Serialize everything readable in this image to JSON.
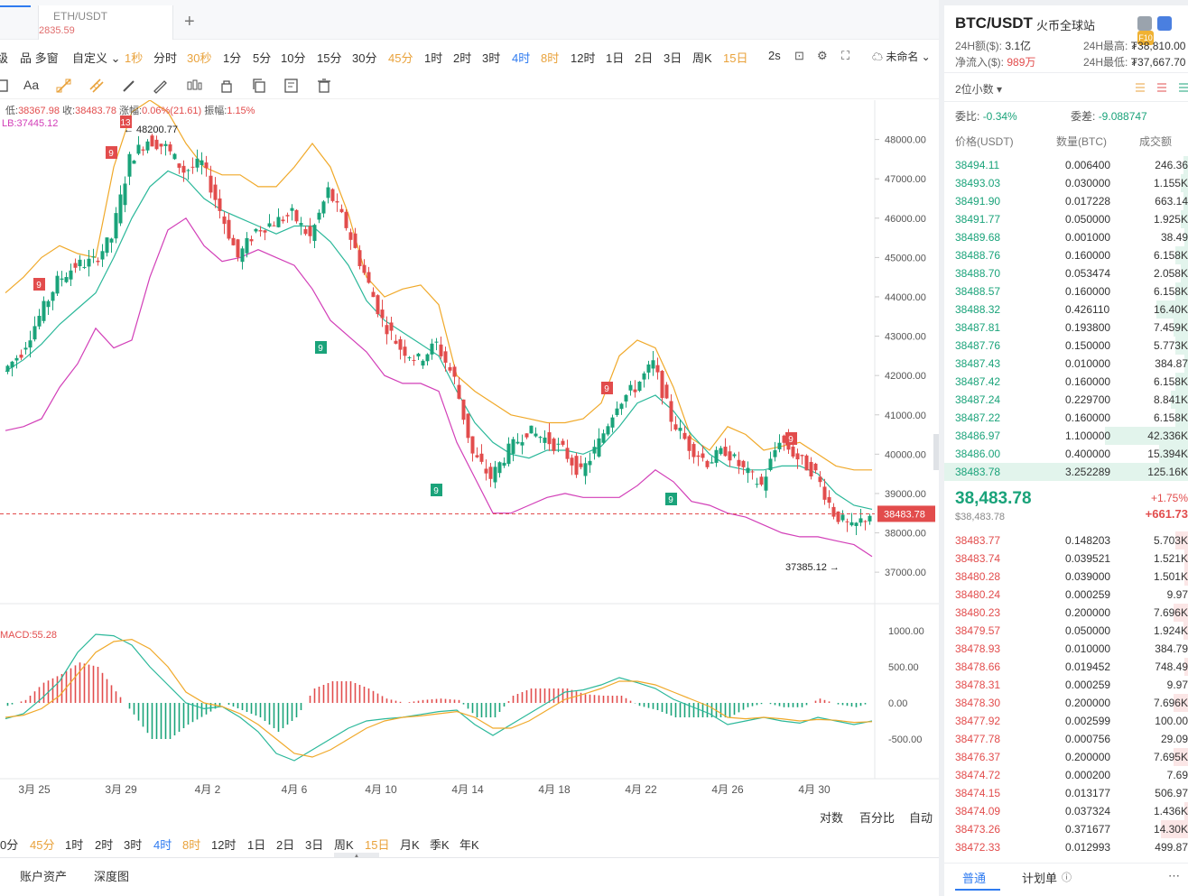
{
  "tabs": {
    "eth_label": "ETH/USDT",
    "eth_price": "2835.59",
    "add": "+"
  },
  "toolbar": {
    "items": [
      {
        "label": "级",
        "cls": ""
      },
      {
        "label": "品 多窗",
        "cls": ""
      },
      {
        "label": "自定义 ⌄",
        "cls": ""
      },
      {
        "label": "1秒",
        "cls": "orange"
      },
      {
        "label": "分时",
        "cls": ""
      },
      {
        "label": "30秒",
        "cls": "orange"
      },
      {
        "label": "1分",
        "cls": ""
      },
      {
        "label": "5分",
        "cls": ""
      },
      {
        "label": "10分",
        "cls": ""
      },
      {
        "label": "15分",
        "cls": ""
      },
      {
        "label": "30分",
        "cls": ""
      },
      {
        "label": "45分",
        "cls": "orange"
      },
      {
        "label": "1时",
        "cls": ""
      },
      {
        "label": "2时",
        "cls": ""
      },
      {
        "label": "3时",
        "cls": ""
      },
      {
        "label": "4时",
        "cls": "blue"
      },
      {
        "label": "8时",
        "cls": "orange"
      },
      {
        "label": "12时",
        "cls": ""
      },
      {
        "label": "1日",
        "cls": ""
      },
      {
        "label": "2日",
        "cls": ""
      },
      {
        "label": "3日",
        "cls": ""
      },
      {
        "label": "周K",
        "cls": ""
      },
      {
        "label": "15日",
        "cls": "orange"
      },
      {
        "label": "2s",
        "cls": ""
      }
    ],
    "unnamed": "未命名 ⌄"
  },
  "chart_info": {
    "low_label": "低:",
    "low": "38367.98",
    "close_label": "收:",
    "close": "38483.78",
    "change_label": "涨幅:",
    "change": "0.06%(21.61)",
    "amp_label": "振幅:",
    "amp": "1.15%",
    "boll": "LB:37445.12",
    "macd": "MACD:55.28",
    "high_marker": "← 48200.77",
    "low_marker": "37385.12 →",
    "current_price_tag": "38483.78"
  },
  "chart_data": {
    "type": "candlestick",
    "x_tick_labels": [
      "3月 25",
      "3月 29",
      "4月 2",
      "4月 6",
      "4月 10",
      "4月 14",
      "4月 18",
      "4月 22",
      "4月 26",
      "4月 30"
    ],
    "price_axis": [
      48000,
      47000,
      46000,
      45000,
      44000,
      43000,
      42000,
      41000,
      40000,
      39000,
      38000,
      37000
    ],
    "price_axis_labels": [
      "48000.00",
      "47000.00",
      "46000.00",
      "45000.00",
      "44000.00",
      "43000.00",
      "42000.00",
      "41000.00",
      "40000.00",
      "39000.00",
      "38000.00",
      "37000.00"
    ],
    "ylim": [
      36200,
      49000
    ],
    "macd_axis": [
      1000,
      500,
      0,
      -500
    ],
    "macd_axis_labels": [
      "1000.00",
      "500.00",
      "0.00",
      "-500.00"
    ],
    "macd_ylim": [
      -1050,
      1350
    ],
    "close_series": [
      42100,
      42600,
      43500,
      44400,
      44800,
      44900,
      45500,
      47500,
      48000,
      47800,
      47200,
      47400,
      46200,
      45000,
      45700,
      45900,
      46100,
      45500,
      46700,
      45800,
      44600,
      43400,
      42700,
      42400,
      42800,
      41900,
      40000,
      39400,
      40100,
      40600,
      40400,
      40100,
      39500,
      40300,
      41300,
      41700,
      42300,
      40900,
      40200,
      39800,
      40100,
      39600,
      39200,
      40400,
      39900,
      39500,
      38500,
      38100,
      38483.78
    ],
    "upper_band": [
      44100,
      44500,
      45000,
      45300,
      45100,
      45000,
      47300,
      48700,
      49000,
      48700,
      47900,
      47300,
      47100,
      47100,
      46800,
      46800,
      47300,
      47900,
      47300,
      46100,
      44500,
      44000,
      44200,
      44300,
      43800,
      42000,
      41600,
      41300,
      41000,
      40900,
      40800,
      40800,
      40900,
      41300,
      42500,
      42900,
      42700,
      41700,
      40400,
      40100,
      40700,
      40500,
      40100,
      40200,
      40300,
      40000,
      39700,
      39600,
      39600
    ],
    "middle_band": [
      42100,
      42400,
      42800,
      43300,
      43700,
      44100,
      45000,
      46000,
      46800,
      47200,
      47000,
      46500,
      46200,
      46000,
      45800,
      45600,
      45800,
      45800,
      45400,
      44800,
      43900,
      43400,
      43100,
      42800,
      42500,
      41600,
      40800,
      40300,
      40000,
      39900,
      40100,
      40100,
      40000,
      40200,
      40700,
      41300,
      41500,
      41100,
      40500,
      40000,
      39700,
      39600,
      39600,
      39700,
      39700,
      39500,
      39000,
      38700,
      38600
    ],
    "lower_band": [
      40600,
      40700,
      40900,
      41700,
      42300,
      43200,
      42700,
      42900,
      44500,
      45700,
      46000,
      45300,
      44900,
      45000,
      45200,
      45000,
      44800,
      44200,
      43400,
      43000,
      42600,
      42000,
      41800,
      41800,
      41600,
      40300,
      39400,
      38500,
      38500,
      38700,
      38900,
      39000,
      38900,
      38900,
      38900,
      39200,
      39600,
      39300,
      38800,
      38700,
      38500,
      38400,
      38200,
      38000,
      37900,
      37900,
      37800,
      37700,
      37400
    ],
    "macd_dif": [
      -220,
      -150,
      60,
      300,
      700,
      950,
      930,
      800,
      500,
      250,
      0,
      -80,
      -50,
      -200,
      -400,
      -700,
      -800,
      -650,
      -500,
      -350,
      -250,
      -220,
      -200,
      -160,
      -120,
      -100,
      -300,
      -450,
      -300,
      -150,
      0,
      150,
      180,
      250,
      350,
      280,
      200,
      50,
      -50,
      -150,
      -300,
      -250,
      -200,
      -250,
      -280,
      -200,
      -250,
      -300,
      -250
    ],
    "macd_dea": [
      -200,
      -170,
      -80,
      100,
      400,
      700,
      850,
      880,
      750,
      500,
      150,
      0,
      -50,
      -150,
      -300,
      -500,
      -700,
      -750,
      -650,
      -500,
      -350,
      -250,
      -200,
      -180,
      -150,
      -120,
      -200,
      -350,
      -350,
      -250,
      -100,
      50,
      120,
      200,
      300,
      300,
      250,
      150,
      50,
      -50,
      -200,
      -220,
      -200,
      -220,
      -250,
      -230,
      -240,
      -270,
      -260
    ],
    "macd_hist": [
      -40,
      40,
      280,
      400,
      560,
      500,
      160,
      -160,
      -500,
      -500,
      -300,
      -160,
      0,
      -100,
      -200,
      -400,
      -200,
      200,
      300,
      300,
      200,
      60,
      0,
      40,
      60,
      40,
      -200,
      -200,
      100,
      200,
      200,
      200,
      120,
      100,
      100,
      -40,
      -100,
      -200,
      -200,
      -200,
      -200,
      -60,
      0,
      -60,
      -60,
      60,
      -20,
      -60,
      20
    ]
  },
  "chart_controls": {
    "log": "对数",
    "percent": "百分比",
    "auto": "自动"
  },
  "bottom_periods": [
    {
      "label": "0分",
      "cls": ""
    },
    {
      "label": "45分",
      "cls": "orange"
    },
    {
      "label": "1时",
      "cls": ""
    },
    {
      "label": "2时",
      "cls": ""
    },
    {
      "label": "3时",
      "cls": ""
    },
    {
      "label": "4时",
      "cls": "blue"
    },
    {
      "label": "8时",
      "cls": "orange"
    },
    {
      "label": "12时",
      "cls": ""
    },
    {
      "label": "1日",
      "cls": ""
    },
    {
      "label": "2日",
      "cls": ""
    },
    {
      "label": "3日",
      "cls": ""
    },
    {
      "label": "周K",
      "cls": ""
    },
    {
      "label": "15日",
      "cls": "orange"
    },
    {
      "label": "月K",
      "cls": ""
    },
    {
      "label": "季K",
      "cls": ""
    },
    {
      "label": "年K",
      "cls": ""
    }
  ],
  "bottom_tabs": {
    "assets": "账户资产",
    "depth": "深度图"
  },
  "right": {
    "pair": "BTC/USDT",
    "exchange": "火币全球站",
    "vol_label": "24H额($):",
    "vol": "3.1亿",
    "high_label": "24H最高:",
    "high": "₮38,810.00",
    "net_label": "净流入($):",
    "net": "989万",
    "low_label": "24H最低:",
    "low": "₮37,667.70",
    "decimals": "2位小数 ▾",
    "ratio_label": "委比:",
    "ratio": "-0.34%",
    "diff_label": "委差:",
    "diff": "-9.088747",
    "col_price": "价格(USDT)",
    "col_qty": "数量(BTC)",
    "col_total": "成交额",
    "asks": [
      [
        "38494.11",
        "0.006400",
        "246.36"
      ],
      [
        "38493.03",
        "0.030000",
        "1.155K"
      ],
      [
        "38491.90",
        "0.017228",
        "663.14"
      ],
      [
        "38491.77",
        "0.050000",
        "1.925K"
      ],
      [
        "38489.68",
        "0.001000",
        "38.49"
      ],
      [
        "38488.76",
        "0.160000",
        "6.158K"
      ],
      [
        "38488.70",
        "0.053474",
        "2.058K"
      ],
      [
        "38488.57",
        "0.160000",
        "6.158K"
      ],
      [
        "38488.32",
        "0.426110",
        "16.40K"
      ],
      [
        "38487.81",
        "0.193800",
        "7.459K"
      ],
      [
        "38487.76",
        "0.150000",
        "5.773K"
      ],
      [
        "38487.43",
        "0.010000",
        "384.87"
      ],
      [
        "38487.42",
        "0.160000",
        "6.158K"
      ],
      [
        "38487.24",
        "0.229700",
        "8.841K"
      ],
      [
        "38487.22",
        "0.160000",
        "6.158K"
      ],
      [
        "38486.97",
        "1.100000",
        "42.336K"
      ],
      [
        "38486.00",
        "0.400000",
        "15.394K"
      ],
      [
        "38483.78",
        "3.252289",
        "125.16K"
      ]
    ],
    "ask_depth": [
      0.02,
      0.03,
      0.02,
      0.03,
      0.01,
      0.05,
      0.03,
      0.05,
      0.13,
      0.06,
      0.05,
      0.01,
      0.05,
      0.07,
      0.05,
      0.34,
      0.12,
      1.0
    ],
    "last_price": "38,483.78",
    "last_sub": "$38,483.78",
    "change_pct": "+1.75%",
    "change_abs": "+661.73",
    "bids": [
      [
        "38483.77",
        "0.148203",
        "5.703K"
      ],
      [
        "38483.74",
        "0.039521",
        "1.521K"
      ],
      [
        "38480.28",
        "0.039000",
        "1.501K"
      ],
      [
        "38480.24",
        "0.000259",
        "9.97"
      ],
      [
        "38480.23",
        "0.200000",
        "7.696K"
      ],
      [
        "38479.57",
        "0.050000",
        "1.924K"
      ],
      [
        "38478.93",
        "0.010000",
        "384.79"
      ],
      [
        "38478.66",
        "0.019452",
        "748.49"
      ],
      [
        "38478.31",
        "0.000259",
        "9.97"
      ],
      [
        "38478.30",
        "0.200000",
        "7.696K"
      ],
      [
        "38477.92",
        "0.002599",
        "100.00"
      ],
      [
        "38477.78",
        "0.000756",
        "29.09"
      ],
      [
        "38476.37",
        "0.200000",
        "7.695K"
      ],
      [
        "38474.72",
        "0.000200",
        "7.69"
      ],
      [
        "38474.15",
        "0.013177",
        "506.97"
      ],
      [
        "38474.09",
        "0.037324",
        "1.436K"
      ],
      [
        "38473.26",
        "0.371677",
        "14.30K"
      ],
      [
        "38472.33",
        "0.012993",
        "499.87"
      ]
    ],
    "bid_depth": [
      0.05,
      0.01,
      0.01,
      0,
      0.06,
      0.02,
      0,
      0.01,
      0,
      0.06,
      0,
      0,
      0.06,
      0,
      0,
      0.01,
      0.11,
      0
    ],
    "tab_normal": "普通",
    "tab_plan": "计划单"
  }
}
